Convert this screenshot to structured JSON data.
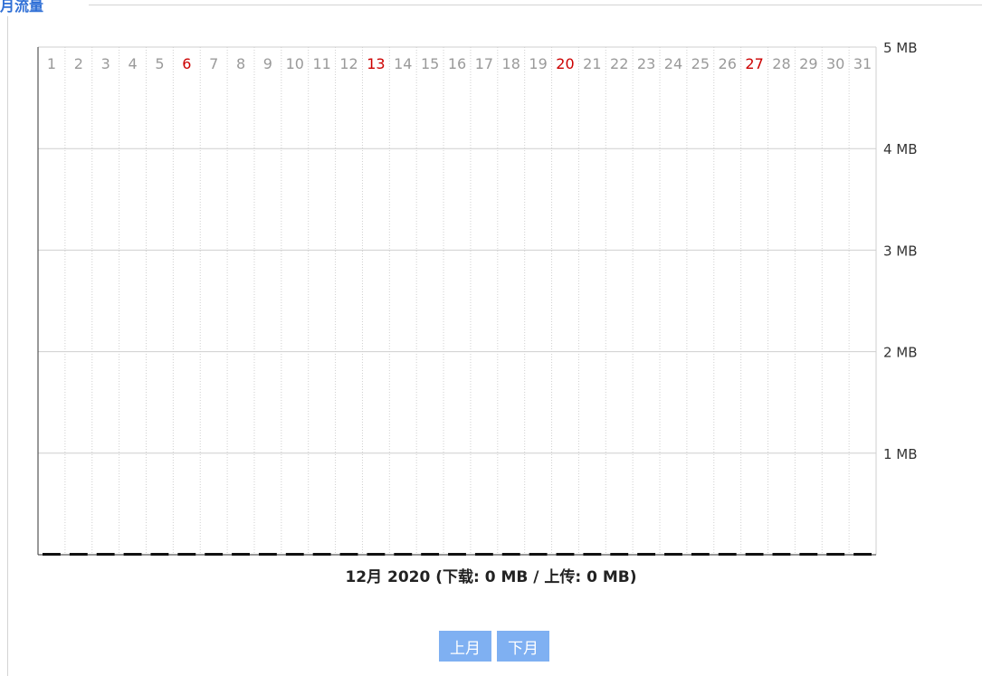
{
  "panel": {
    "legend": "月流量"
  },
  "chart_data": {
    "type": "bar",
    "categories": [
      "1",
      "2",
      "3",
      "4",
      "5",
      "6",
      "7",
      "8",
      "9",
      "10",
      "11",
      "12",
      "13",
      "14",
      "15",
      "16",
      "17",
      "18",
      "19",
      "20",
      "21",
      "22",
      "23",
      "24",
      "25",
      "26",
      "27",
      "28",
      "29",
      "30",
      "31"
    ],
    "highlighted_days": [
      "6",
      "13",
      "20",
      "27"
    ],
    "series": [
      {
        "values": [
          0,
          0,
          0,
          0,
          0,
          0,
          0,
          0,
          0,
          0,
          0,
          0,
          0,
          0,
          0,
          0,
          0,
          0,
          0,
          0,
          0,
          0,
          0,
          0,
          0,
          0,
          0,
          0,
          0,
          0,
          0
        ]
      }
    ],
    "y_ticks": [
      "1 MB",
      "2 MB",
      "3 MB",
      "4 MB",
      "5 MB"
    ],
    "ylim": [
      0,
      5
    ],
    "grid": true,
    "caption": "12月 2020 (下载: 0 MB / 上传: 0 MB)"
  },
  "nav": {
    "prev_label": "上月",
    "next_label": "下月"
  },
  "colors": {
    "legend": "#2f6fd6",
    "day_label": "#9a9a9a",
    "day_highlight": "#cc0000",
    "grid": "#cfcfcf",
    "axis": "#333333",
    "bar": "#111111",
    "button_bg": "#7fb0f2",
    "button_text": "#ffffff"
  }
}
